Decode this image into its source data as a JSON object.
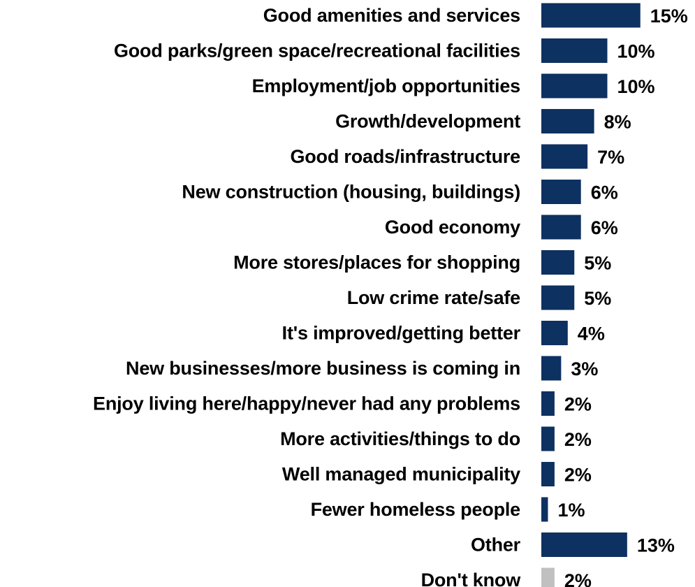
{
  "chart_data": {
    "type": "bar",
    "orientation": "horizontal",
    "title": "",
    "xlabel": "",
    "ylabel": "",
    "value_suffix": "%",
    "xlim": [
      0,
      15
    ],
    "grid": false,
    "legend": "none",
    "categories": [
      "Good amenities and services",
      "Good parks/green space/recreational facilities",
      "Employment/job opportunities",
      "Growth/development",
      "Good roads/infrastructure",
      "New construction (housing, buildings)",
      "Good economy",
      "More stores/places for shopping",
      "Low crime rate/safe",
      "It's improved/getting better",
      "New businesses/more business is coming in",
      "Enjoy living here/happy/never had any problems",
      "More activities/things to do",
      "Well managed municipality",
      "Fewer homeless people",
      "Other",
      "Don't know"
    ],
    "values": [
      15,
      10,
      10,
      8,
      7,
      6,
      6,
      5,
      5,
      4,
      3,
      2,
      2,
      2,
      1,
      13,
      2
    ],
    "value_labels": [
      "15%",
      "10%",
      "10%",
      "8%",
      "7%",
      "6%",
      "6%",
      "5%",
      "5%",
      "4%",
      "3%",
      "2%",
      "2%",
      "2%",
      "1%",
      "13%",
      "2%"
    ],
    "colors": {
      "primary": "#0d3160",
      "dont_know": "#c0c0c0"
    }
  }
}
